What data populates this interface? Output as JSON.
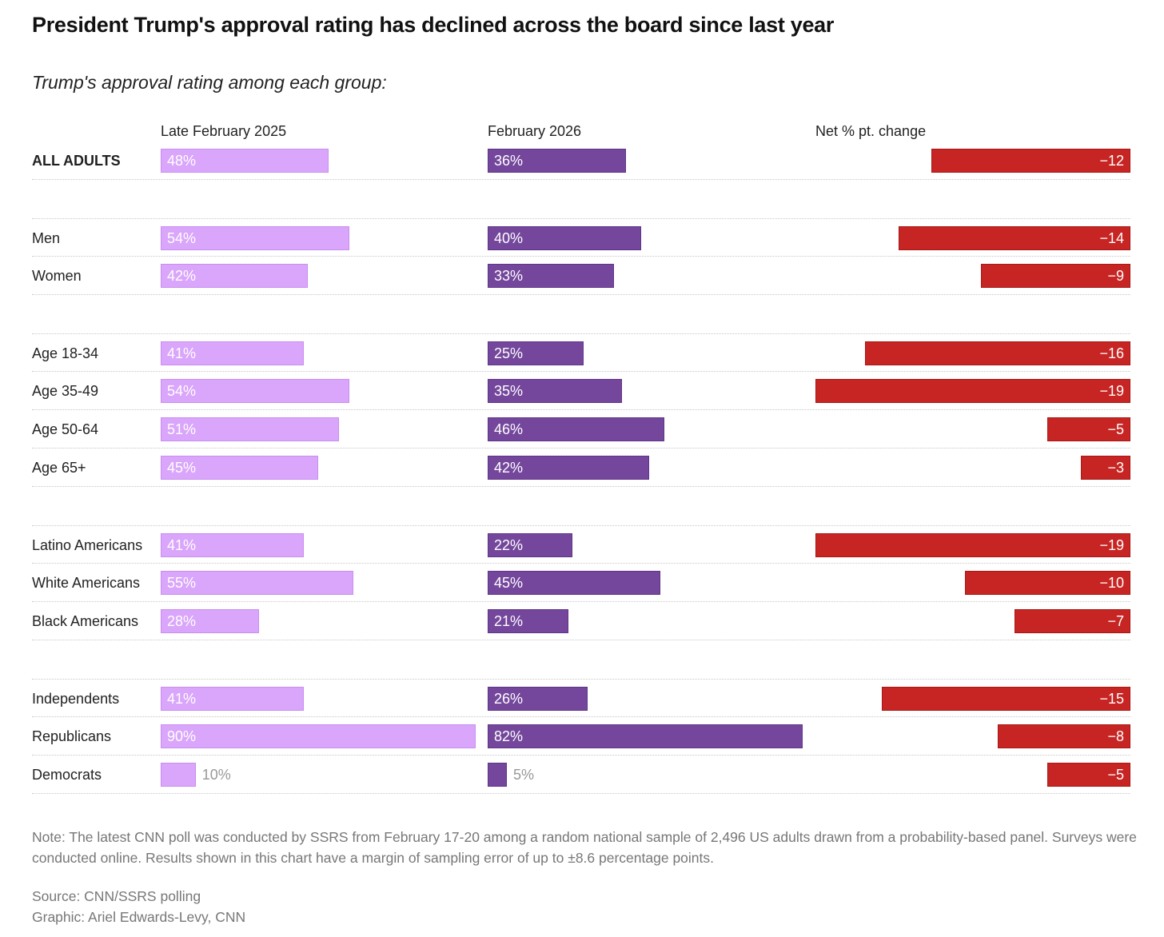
{
  "title": "President Trump's approval rating has declined across the board since last year",
  "subtitle": "Trump's approval rating among each group:",
  "note": "Note: The latest CNN poll was conducted by SSRS from February 17-20 among a random national sample of 2,496 US adults drawn from a probability-based panel. Surveys were conducted online. Results shown in this chart have a margin of sampling error of up to ±8.6 percentage points.",
  "source": "Source: CNN/SSRS polling",
  "graphic": "Graphic: Ariel Edwards-Levy, CNN",
  "colors": {
    "late_feb_2025": "#d9a6fb",
    "feb_2026": "#74479c",
    "net_change": "#c62523"
  },
  "chart_data": {
    "type": "bar",
    "title": "President Trump's approval rating has declined across the board since last year",
    "columns": [
      "Late February 2025",
      "February 2026",
      "Net % pt. change"
    ],
    "groups": [
      {
        "rows": [
          {
            "label": "ALL ADULTS",
            "v2025": 48,
            "v2026": 36,
            "net": -12,
            "l2025": "48%",
            "l2026": "36%",
            "lnet": "−12"
          }
        ]
      },
      {
        "rows": [
          {
            "label": "Men",
            "v2025": 54,
            "v2026": 40,
            "net": -14,
            "l2025": "54%",
            "l2026": "40%",
            "lnet": "−14"
          },
          {
            "label": "Women",
            "v2025": 42,
            "v2026": 33,
            "net": -9,
            "l2025": "42%",
            "l2026": "33%",
            "lnet": "−9"
          }
        ]
      },
      {
        "rows": [
          {
            "label": "Age 18-34",
            "v2025": 41,
            "v2026": 25,
            "net": -16,
            "l2025": "41%",
            "l2026": "25%",
            "lnet": "−16"
          },
          {
            "label": "Age 35-49",
            "v2025": 54,
            "v2026": 35,
            "net": -19,
            "l2025": "54%",
            "l2026": "35%",
            "lnet": "−19"
          },
          {
            "label": "Age 50-64",
            "v2025": 51,
            "v2026": 46,
            "net": -5,
            "l2025": "51%",
            "l2026": "46%",
            "lnet": "−5"
          },
          {
            "label": "Age 65+",
            "v2025": 45,
            "v2026": 42,
            "net": -3,
            "l2025": "45%",
            "l2026": "42%",
            "lnet": "−3"
          }
        ]
      },
      {
        "rows": [
          {
            "label": "Latino Americans",
            "v2025": 41,
            "v2026": 22,
            "net": -19,
            "l2025": "41%",
            "l2026": "22%",
            "lnet": "−19"
          },
          {
            "label": "White Americans",
            "v2025": 55,
            "v2026": 45,
            "net": -10,
            "l2025": "55%",
            "l2026": "45%",
            "lnet": "−10"
          },
          {
            "label": "Black Americans",
            "v2025": 28,
            "v2026": 21,
            "net": -7,
            "l2025": "28%",
            "l2026": "21%",
            "lnet": "−7"
          }
        ]
      },
      {
        "rows": [
          {
            "label": "Independents",
            "v2025": 41,
            "v2026": 26,
            "net": -15,
            "l2025": "41%",
            "l2026": "26%",
            "lnet": "−15"
          },
          {
            "label": "Republicans",
            "v2025": 90,
            "v2026": 82,
            "net": -8,
            "l2025": "90%",
            "l2026": "82%",
            "lnet": "−8"
          },
          {
            "label": "Democrats",
            "v2025": 10,
            "v2026": 5,
            "net": -5,
            "l2025": "10%",
            "l2026": "5%",
            "lnet": "−5"
          }
        ]
      }
    ]
  }
}
